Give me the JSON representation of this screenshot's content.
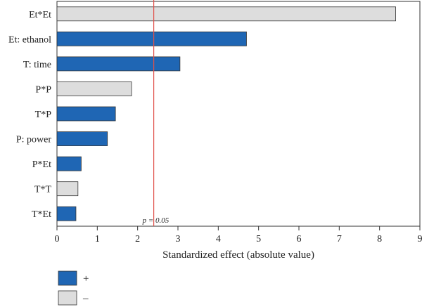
{
  "chart_data": {
    "type": "bar",
    "orientation": "horizontal",
    "categories": [
      "Et*Et",
      "Et: ethanol",
      "T: time",
      "P*P",
      "T*P",
      "P: power",
      "P*Et",
      "T*T",
      "T*Et"
    ],
    "values": [
      8.4,
      4.7,
      3.05,
      1.85,
      1.45,
      1.25,
      0.6,
      0.52,
      0.47
    ],
    "signs": [
      "-",
      "+",
      "+",
      "-",
      "+",
      "+",
      "+",
      "-",
      "+"
    ],
    "xlabel": "Standardized effect (absolute value)",
    "xlim": [
      0,
      9
    ],
    "xticks": [
      "0",
      "1",
      "2",
      "3",
      "4",
      "5",
      "6",
      "7",
      "8",
      "9"
    ],
    "threshold": {
      "value": 2.4,
      "label": "p = 0.05"
    },
    "grid": false,
    "legend": {
      "position": "bottom-left",
      "entries": [
        {
          "label": "+",
          "color": "#1F66B4"
        },
        {
          "label": "–",
          "color": "#DDDDDD"
        }
      ]
    },
    "colors": {
      "positive": "#1F66B4",
      "negative": "#DDDDDD",
      "threshold_line": "#E0504A",
      "axis": "#333333"
    }
  }
}
